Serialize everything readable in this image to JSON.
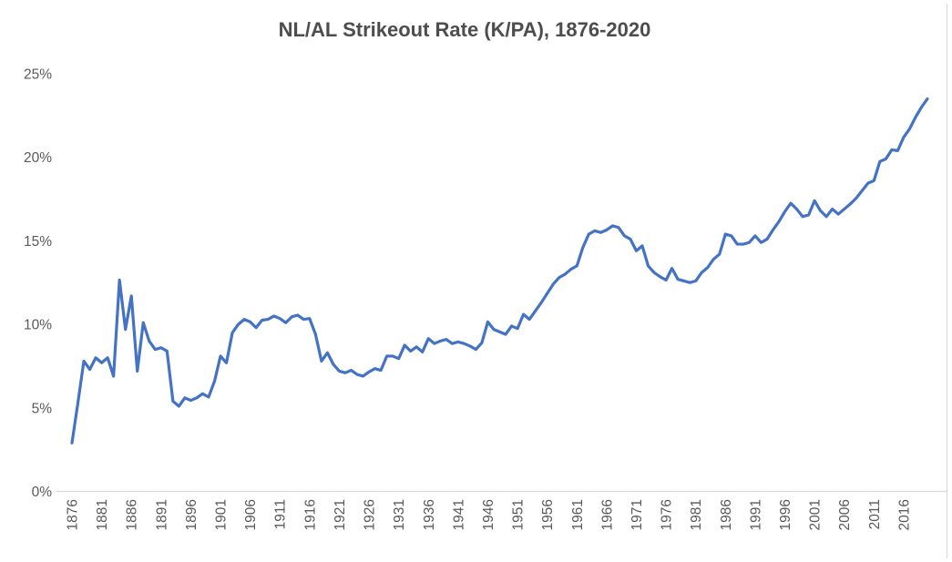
{
  "chart_data": {
    "type": "line",
    "title": "NL/AL Strikeout Rate (K/PA), 1876-2020",
    "xlabel": "",
    "ylabel": "",
    "x_range": [
      1876,
      2020
    ],
    "x_step": 1,
    "x_tick_labels": [
      "1876",
      "1881",
      "1886",
      "1891",
      "1896",
      "1901",
      "1906",
      "1911",
      "1916",
      "1921",
      "1926",
      "1931",
      "1936",
      "1941",
      "1946",
      "1951",
      "1956",
      "1961",
      "1966",
      "1971",
      "1976",
      "1981",
      "1986",
      "1991",
      "1996",
      "2001",
      "2006",
      "2011",
      "2016"
    ],
    "y_tick_labels": [
      "0%",
      "5%",
      "10%",
      "15%",
      "20%",
      "25%"
    ],
    "ylim": [
      0,
      25
    ],
    "y_unit": "%",
    "grid": false,
    "legend": false,
    "series": [
      {
        "name": "NL/AL strikeout rate (K/PA)",
        "color": "#4472C4",
        "values": [
          2.9,
          5.3,
          7.8,
          7.3,
          8.0,
          7.7,
          8.0,
          6.9,
          12.65,
          9.7,
          11.7,
          7.2,
          10.1,
          9.0,
          8.5,
          8.6,
          8.4,
          5.4,
          5.1,
          5.6,
          5.45,
          5.6,
          5.85,
          5.65,
          6.6,
          8.1,
          7.7,
          9.5,
          10.0,
          10.3,
          10.15,
          9.8,
          10.25,
          10.3,
          10.5,
          10.35,
          10.1,
          10.45,
          10.55,
          10.3,
          10.35,
          9.4,
          7.8,
          8.3,
          7.6,
          7.2,
          7.1,
          7.25,
          7.0,
          6.9,
          7.15,
          7.35,
          7.25,
          8.1,
          8.1,
          7.95,
          8.75,
          8.4,
          8.65,
          8.35,
          9.15,
          8.85,
          9.0,
          9.1,
          8.85,
          8.95,
          8.85,
          8.7,
          8.5,
          8.9,
          10.15,
          9.7,
          9.55,
          9.4,
          9.9,
          9.75,
          10.6,
          10.3,
          10.8,
          11.3,
          11.85,
          12.4,
          12.8,
          13.0,
          13.3,
          13.5,
          14.6,
          15.4,
          15.6,
          15.5,
          15.65,
          15.9,
          15.8,
          15.3,
          15.1,
          14.4,
          14.7,
          13.5,
          13.1,
          12.85,
          12.65,
          13.35,
          12.7,
          12.6,
          12.5,
          12.6,
          13.1,
          13.4,
          13.9,
          14.2,
          15.4,
          15.3,
          14.8,
          14.8,
          14.9,
          15.3,
          14.9,
          15.1,
          15.65,
          16.15,
          16.75,
          17.25,
          16.9,
          16.45,
          16.55,
          17.4,
          16.8,
          16.45,
          16.9,
          16.6,
          16.9,
          17.2,
          17.55,
          18.0,
          18.45,
          18.6,
          19.75,
          19.9,
          20.45,
          20.4,
          21.2,
          21.7,
          22.4,
          23.0,
          23.5
        ]
      }
    ],
    "colors": {
      "series_line": "#4472C4",
      "axis_line": "#D9D9D9",
      "tick_text": "#595959",
      "title_text": "#4d4d4d"
    }
  }
}
